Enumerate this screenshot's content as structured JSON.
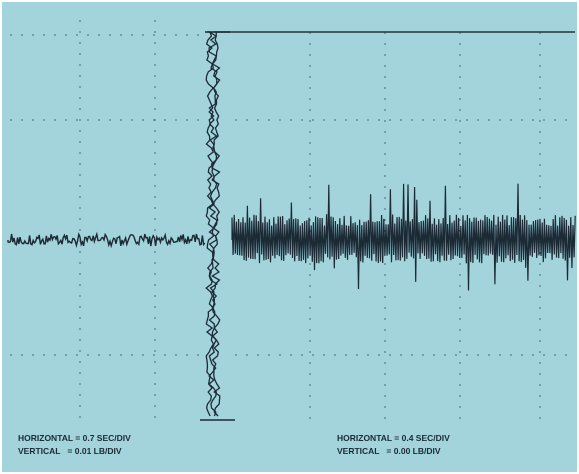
{
  "scales": [
    {
      "horizontal": "HORIZONTAL = 0.7 SEC/DIV",
      "vertical": "VERTICAL   = 0.01 LB/DIV"
    },
    {
      "horizontal": "HORIZONTAL = 0.4 SEC/DIV",
      "vertical": "VERTICAL   = 0.00 LB/DIV"
    }
  ]
}
